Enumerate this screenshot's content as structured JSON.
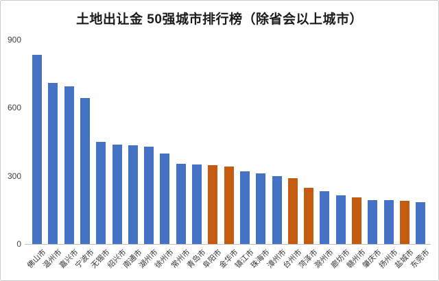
{
  "chart_data": {
    "type": "bar",
    "title": "土地出让金 50强城市排行榜（除省会以上城市）",
    "categories": [
      "佛山市",
      "温州市",
      "嘉兴市",
      "宁波市",
      "无锡市",
      "绍兴市",
      "南通市",
      "湖州市",
      "徐州市",
      "常州市",
      "青岛市",
      "阜阳市",
      "金华市",
      "镇江市",
      "珠海市",
      "漳州市",
      "台州市",
      "菏泽市",
      "滁州市",
      "廊坊市",
      "赣州市",
      "肇庆市",
      "扬州市",
      "盐城市",
      "东莞市"
    ],
    "values": [
      835,
      710,
      695,
      643,
      450,
      438,
      435,
      429,
      399,
      354,
      350,
      347,
      341,
      320,
      312,
      299,
      290,
      248,
      233,
      215,
      205,
      194,
      193,
      190,
      185
    ],
    "highlight_indices": [
      11,
      12,
      16,
      17,
      20,
      23
    ],
    "y_ticks": [
      0,
      300,
      600,
      900
    ],
    "ylim": [
      0,
      900
    ],
    "xlabel": "",
    "ylabel": "",
    "grid": false,
    "legend": false,
    "colors": {
      "bar_default": "#4472C4",
      "bar_highlight": "#C55A11",
      "axis_line": "#bfbfbf",
      "tick_text": "#404040",
      "title_text": "#1a1a1a",
      "frame_border": "#c9c9c9",
      "background": "#ffffff"
    }
  }
}
